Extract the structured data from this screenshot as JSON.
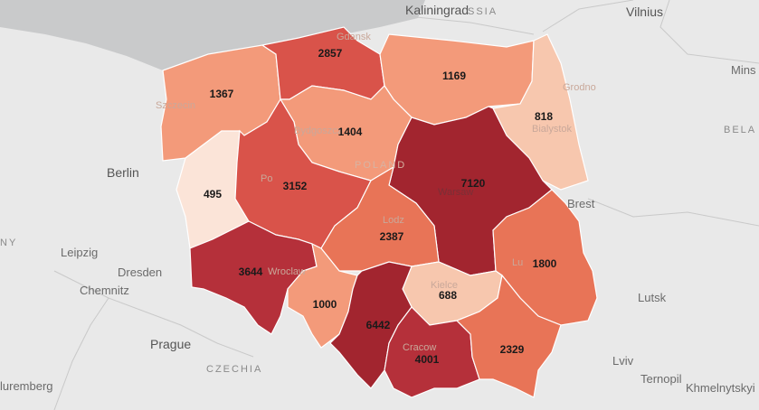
{
  "colors": {
    "background": "#e9e9e9",
    "sea": "#c9cacb",
    "scale": [
      "#fbe4d8",
      "#f7c7ae",
      "#f39a7a",
      "#e87457",
      "#d9534a",
      "#b5303a",
      "#a2252f"
    ]
  },
  "country_label": "POLAND",
  "neighbor_labels": {
    "russia": "SSIA",
    "belarus": "BELA",
    "czechia": "CZECHIA",
    "germany": "NY"
  },
  "cities_outside": {
    "kaliningrad": "Kaliningrad",
    "vilnius": "Vilnius",
    "minsk": "Mins",
    "berlin": "Berlin",
    "leipzig": "Leipzig",
    "dresden": "Dresden",
    "chemnitz": "Chemnitz",
    "prague": "Prague",
    "brest": "Brest",
    "lutsk": "Lutsk",
    "lviv": "Lviv",
    "ternopil": "Ternopil",
    "khmelnytskyi": "Khmelnytskyi",
    "nuremberg": "luremberg"
  },
  "cities_inside": {
    "gdansk": "Gdansk",
    "szczecin": "Szczecin",
    "bydgoszcz": "Bydgoszcz",
    "grodno": "Grodno",
    "bialystok": "Bialystok",
    "warsaw": "Warsaw",
    "lodz": "Lodz",
    "poznan": "Po",
    "wroclaw": "Wroclaw",
    "lublin": "Lu",
    "kielce": "Kielce",
    "cracow": "Cracow"
  },
  "regions": [
    {
      "id": "pomorskie",
      "value": 2857
    },
    {
      "id": "warminsko-mazurskie",
      "value": 1169
    },
    {
      "id": "zachodniopomorskie",
      "value": 1367
    },
    {
      "id": "podlaskie",
      "value": 818
    },
    {
      "id": "kujawsko-pomorskie",
      "value": 1404
    },
    {
      "id": "mazowieckie",
      "value": 7120
    },
    {
      "id": "lubuskie",
      "value": 495
    },
    {
      "id": "wielkopolskie",
      "value": 3152
    },
    {
      "id": "lodzkie",
      "value": 2387
    },
    {
      "id": "lubelskie",
      "value": 1800
    },
    {
      "id": "dolnoslaskie",
      "value": 3644
    },
    {
      "id": "opolskie",
      "value": 1000
    },
    {
      "id": "swietokrzyskie",
      "value": 688
    },
    {
      "id": "slaskie",
      "value": 6442
    },
    {
      "id": "malopolskie",
      "value": 4001
    },
    {
      "id": "podkarpackie",
      "value": 2329
    }
  ]
}
